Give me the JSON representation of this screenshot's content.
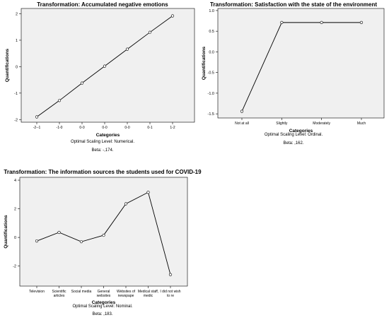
{
  "chart_data": [
    {
      "type": "line",
      "title": "Transformation: Accumulated negative emotions",
      "xlabel": "Categories",
      "ylabel": "Quantifications",
      "categories": [
        "-2--1",
        "-1-0",
        "0-0",
        "0-0",
        "0-0",
        "0-1",
        "1-2"
      ],
      "values": [
        -1.9,
        -1.28,
        -0.62,
        0.02,
        0.66,
        1.3,
        1.92
      ],
      "ylim": [
        -2.1,
        2.2
      ],
      "yticks": [
        -2,
        -1,
        0,
        1,
        2
      ],
      "scaling_level": "Optimal Scaling Level: Numerical.",
      "beta": "Beta: -,174."
    },
    {
      "type": "line",
      "title": "Transformation: Satisfaction with the state of the environment",
      "xlabel": "Categories",
      "ylabel": "Quantifications",
      "categories": [
        "Not at all",
        "Slightly",
        "Moderately",
        "Much"
      ],
      "values": [
        -1.44,
        0.71,
        0.71,
        0.71
      ],
      "ylim": [
        -1.6,
        1.05
      ],
      "yticks": [
        "1.0",
        "0.5",
        "0.0",
        "-0.5",
        "-1.0",
        "-1.5"
      ],
      "ytick_values": [
        1.0,
        0.5,
        0.0,
        -0.5,
        -1.0,
        -1.5
      ],
      "scaling_level": "Optimal Scaling Level: Ordinal.",
      "beta": "Beta: ,162."
    },
    {
      "type": "line",
      "title": "Transformation: The information sources the students used for COVID-19",
      "xlabel": "Categories",
      "ylabel": "Quantifications",
      "categories": [
        "Television",
        "Scientific articles",
        "Social media",
        "General websites",
        "Websites of newspape",
        "Medical staff, medic",
        "I did not wish to re"
      ],
      "category_lines": [
        [
          "Television"
        ],
        [
          "Scientific",
          "articles"
        ],
        [
          "Social media"
        ],
        [
          "General",
          "websites"
        ],
        [
          "Websites of",
          "newspape"
        ],
        [
          "Medical staff,",
          "medic"
        ],
        [
          "I did not wish",
          "to re"
        ]
      ],
      "values": [
        -0.25,
        0.35,
        -0.3,
        0.15,
        2.35,
        3.15,
        -2.6
      ],
      "ylim": [
        -3.4,
        4.2
      ],
      "yticks": [
        4,
        2,
        0,
        -2
      ],
      "scaling_level": "Optimal Scaling Level: Nominal.",
      "beta": "Beta: ,183."
    }
  ],
  "colors": {
    "plot_bg": "#f0f0f0",
    "line": "#000000",
    "marker_fill": "#ffffff"
  }
}
